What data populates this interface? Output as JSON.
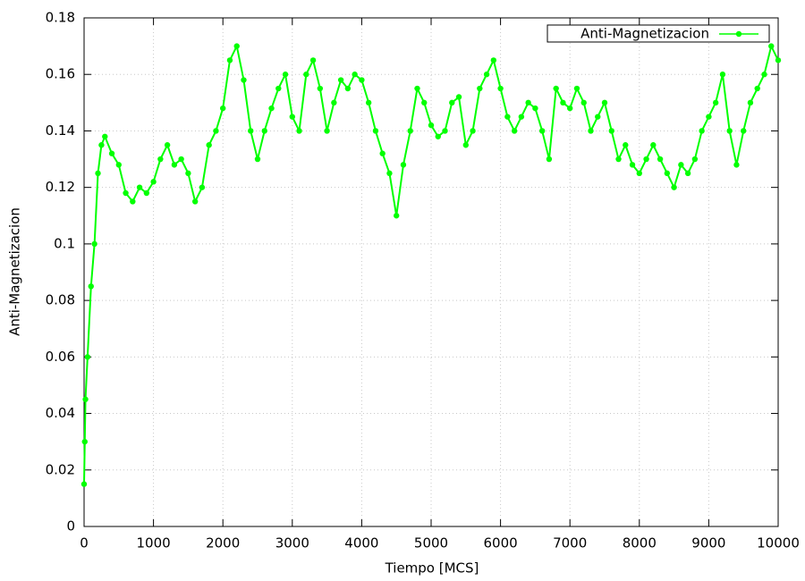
{
  "chart_data": {
    "type": "line",
    "xlabel": "Tiempo [MCS]",
    "ylabel": "Anti-Magnetizacion",
    "x": [
      0,
      10,
      20,
      50,
      100,
      150,
      200,
      250,
      300,
      400,
      500,
      600,
      700,
      800,
      900,
      1000,
      1100,
      1200,
      1300,
      1400,
      1500,
      1600,
      1700,
      1800,
      1900,
      2000,
      2100,
      2200,
      2300,
      2400,
      2500,
      2600,
      2700,
      2800,
      2900,
      3000,
      3100,
      3200,
      3300,
      3400,
      3500,
      3600,
      3700,
      3800,
      3900,
      4000,
      4100,
      4200,
      4300,
      4400,
      4500,
      4600,
      4700,
      4800,
      4900,
      5000,
      5100,
      5200,
      5300,
      5400,
      5500,
      5600,
      5700,
      5800,
      5900,
      6000,
      6100,
      6200,
      6300,
      6400,
      6500,
      6600,
      6700,
      6800,
      6900,
      7000,
      7100,
      7200,
      7300,
      7400,
      7500,
      7600,
      7700,
      7800,
      7900,
      8000,
      8100,
      8200,
      8300,
      8400,
      8500,
      8600,
      8700,
      8800,
      8900,
      9000,
      9100,
      9200,
      9300,
      9400,
      9500,
      9600,
      9700,
      9800,
      9900,
      10000
    ],
    "series": [
      {
        "name": "Anti-Magnetizacion",
        "color": "#00ff00",
        "values": [
          0.015,
          0.03,
          0.045,
          0.06,
          0.085,
          0.1,
          0.125,
          0.135,
          0.138,
          0.132,
          0.128,
          0.118,
          0.115,
          0.12,
          0.118,
          0.122,
          0.13,
          0.135,
          0.128,
          0.13,
          0.125,
          0.115,
          0.12,
          0.135,
          0.14,
          0.148,
          0.165,
          0.17,
          0.158,
          0.14,
          0.13,
          0.14,
          0.148,
          0.155,
          0.16,
          0.145,
          0.14,
          0.16,
          0.165,
          0.155,
          0.14,
          0.15,
          0.158,
          0.155,
          0.16,
          0.158,
          0.15,
          0.14,
          0.132,
          0.125,
          0.11,
          0.128,
          0.14,
          0.155,
          0.15,
          0.142,
          0.138,
          0.14,
          0.15,
          0.152,
          0.135,
          0.14,
          0.155,
          0.16,
          0.165,
          0.155,
          0.145,
          0.14,
          0.145,
          0.15,
          0.148,
          0.14,
          0.13,
          0.155,
          0.15,
          0.148,
          0.155,
          0.15,
          0.14,
          0.145,
          0.15,
          0.14,
          0.13,
          0.135,
          0.128,
          0.125,
          0.13,
          0.135,
          0.13,
          0.125,
          0.12,
          0.128,
          0.125,
          0.13,
          0.14,
          0.145,
          0.15,
          0.16,
          0.14,
          0.128,
          0.14,
          0.15,
          0.155,
          0.16,
          0.17,
          0.165
        ]
      }
    ],
    "xlim": [
      0,
      10000
    ],
    "xticks": [
      0,
      1000,
      2000,
      3000,
      4000,
      5000,
      6000,
      7000,
      8000,
      9000,
      10000
    ],
    "ylim": [
      0,
      0.18
    ],
    "yticks": [
      0,
      0.02,
      0.04,
      0.06,
      0.08,
      0.1,
      0.12,
      0.14,
      0.16,
      0.18
    ],
    "grid": true,
    "legend": "top-right"
  }
}
